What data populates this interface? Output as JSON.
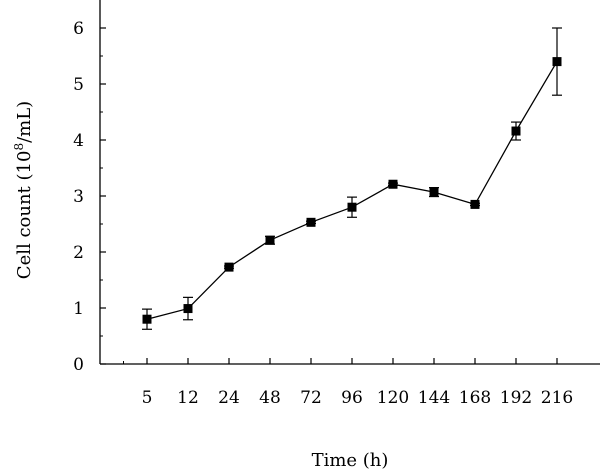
{
  "chart_data": {
    "type": "line",
    "xlabel": "Time (h)",
    "ylabel": {
      "prefix": "Cell count (10",
      "sup": "8",
      "suffix": "/mL)"
    },
    "categories": [
      "5",
      "12",
      "24",
      "48",
      "72",
      "96",
      "120",
      "144",
      "168",
      "192",
      "216"
    ],
    "series": [
      {
        "values": [
          0.8,
          0.99,
          1.73,
          2.21,
          2.53,
          2.8,
          3.21,
          3.07,
          2.85,
          4.16,
          5.4
        ],
        "errors": [
          0.18,
          0.2,
          0.02,
          0.07,
          0.02,
          0.18,
          0.02,
          0.08,
          0.02,
          0.16,
          0.6
        ],
        "marker": "square",
        "color": "#000000"
      }
    ],
    "ylim": [
      0,
      6
    ],
    "yticks": [
      "0",
      "1",
      "2",
      "3",
      "4",
      "5",
      "6"
    ],
    "grid": false
  }
}
